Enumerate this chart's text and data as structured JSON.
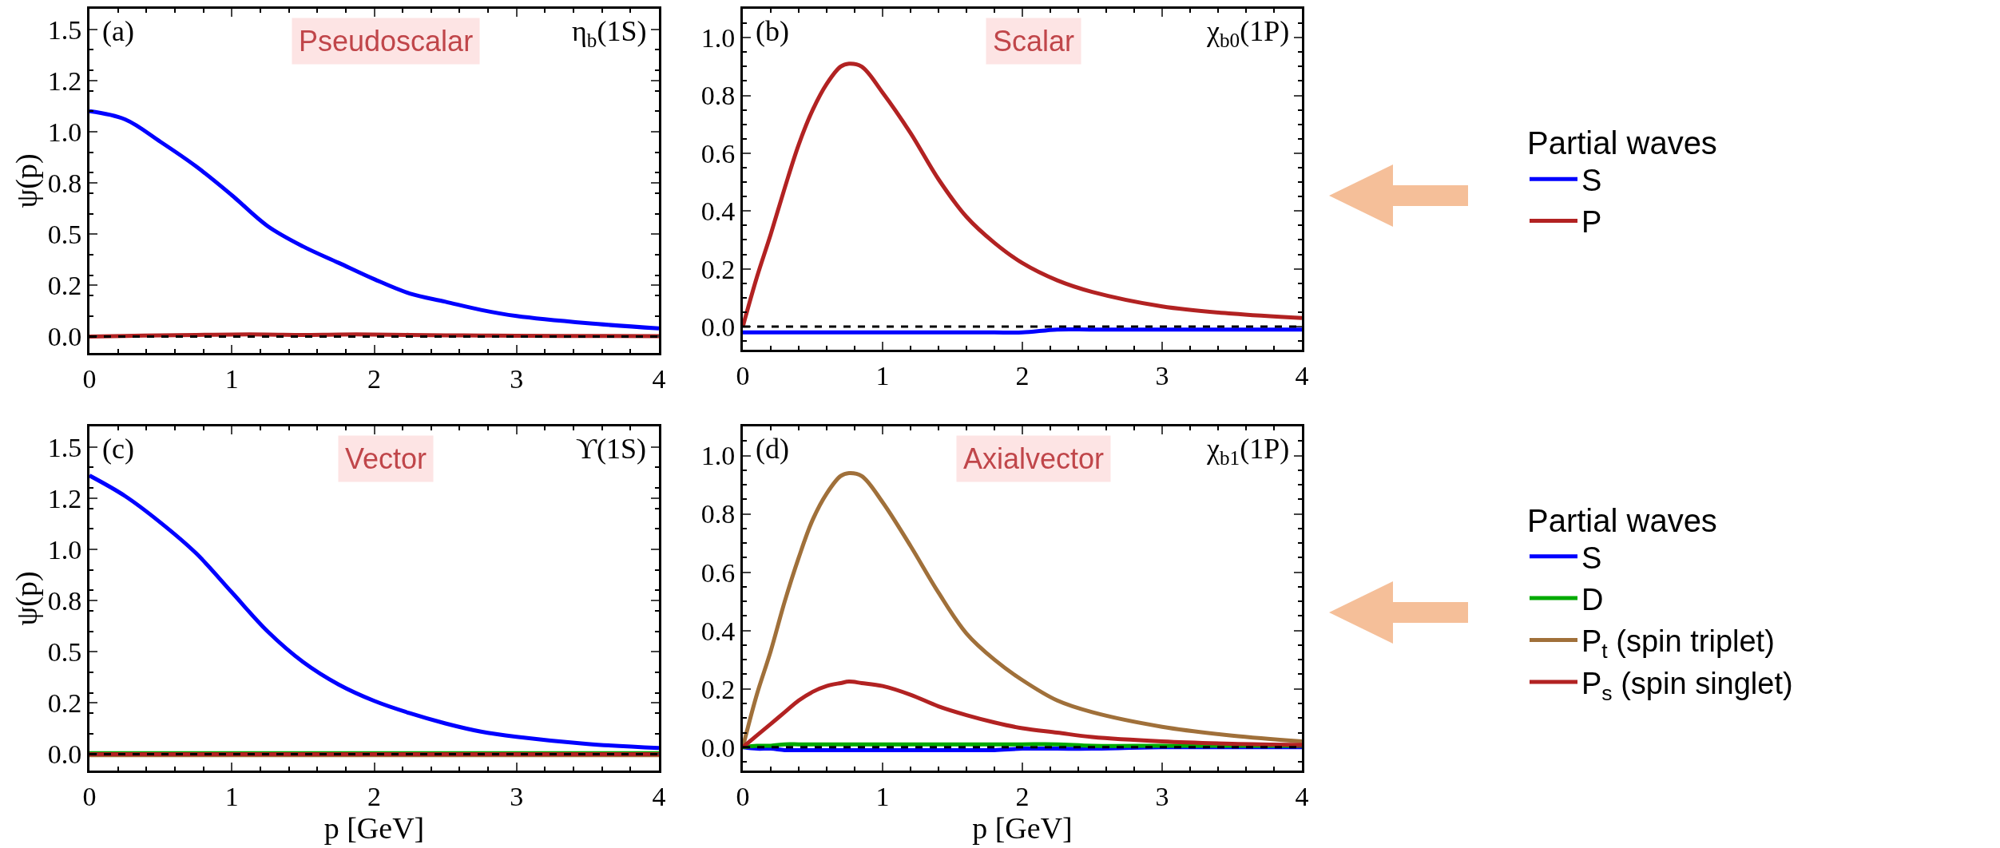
{
  "chart_data": [
    {
      "type": "line",
      "x": [
        0,
        0.25,
        0.5,
        0.75,
        1,
        1.25,
        1.5,
        1.75,
        2,
        2.25,
        2.5,
        2.75,
        3,
        3.5,
        4
      ],
      "ylabel": "ψ(p)",
      "xlim": [
        0,
        4
      ],
      "xticks": [
        0,
        1,
        2,
        3,
        4
      ],
      "ylim": [
        -0.08,
        1.6
      ],
      "yticks": [
        {
          "value": 0,
          "label": "0.0"
        },
        {
          "value": 0.25,
          "label": "0.2"
        },
        0.5,
        {
          "value": 0.75,
          "label": "0.8"
        },
        {
          "value": 1,
          "label": "1.0"
        },
        {
          "value": 1.25,
          "label": "1.2"
        },
        1.5
      ],
      "annotations": [
        "(a)",
        "Pseudoscalar",
        "η$_{b}$(1S)"
      ],
      "ref_lines": [
        {
          "axis": "y",
          "value": 0,
          "color": "#000000",
          "line_style": "dashed"
        }
      ],
      "legend": false,
      "grid": false,
      "series": [
        {
          "color": "#0000ff",
          "values": [
            1.1,
            1.06,
            0.95,
            0.83,
            0.69,
            0.54,
            0.44,
            0.36,
            0.28,
            0.21,
            0.17,
            0.13,
            0.1,
            0.065,
            0.04
          ]
        },
        {
          "color": "#b22222",
          "values": [
            0,
            0.003,
            0.006,
            0.008,
            0.01,
            0.01,
            0.008,
            0.01,
            0.01,
            0.008,
            0.006,
            0.005,
            0.004,
            0.003,
            0.002
          ]
        }
      ]
    },
    {
      "type": "line",
      "x": [
        0,
        0.1,
        0.2,
        0.3,
        0.4,
        0.5,
        0.6,
        0.7,
        0.76,
        0.85,
        1,
        1.2,
        1.4,
        1.6,
        1.8,
        2,
        2.25,
        2.5,
        3,
        3.5,
        4
      ],
      "xlim": [
        0,
        4
      ],
      "xticks": [
        0,
        1,
        2,
        3,
        4
      ],
      "ylim": [
        -0.08,
        1.1
      ],
      "yticks": [
        {
          "value": 0,
          "label": "0.0"
        },
        0.2,
        0.4,
        0.6,
        0.8,
        {
          "value": 1,
          "label": "1.0"
        }
      ],
      "annotations": [
        "(b)",
        "Scalar",
        "χ$_{b0}$(1P)"
      ],
      "ref_lines": [
        {
          "axis": "y",
          "value": 0,
          "color": "#000000",
          "line_style": "dashed"
        }
      ],
      "legend": "right",
      "legend_title": "Partial waves",
      "grid": false,
      "series": [
        {
          "name": "S",
          "color": "#0000ff",
          "values": [
            -0.02,
            -0.02,
            -0.02,
            -0.02,
            -0.02,
            -0.02,
            -0.02,
            -0.02,
            -0.02,
            -0.02,
            -0.02,
            -0.02,
            -0.02,
            -0.02,
            -0.02,
            -0.02,
            -0.01,
            -0.01,
            -0.01,
            -0.01,
            -0.01
          ]
        },
        {
          "name": "P",
          "color": "#b22222",
          "values": [
            0,
            0.17,
            0.32,
            0.48,
            0.63,
            0.75,
            0.84,
            0.9,
            0.91,
            0.9,
            0.81,
            0.67,
            0.51,
            0.38,
            0.29,
            0.22,
            0.16,
            0.12,
            0.07,
            0.045,
            0.03
          ]
        }
      ]
    },
    {
      "type": "line",
      "x": [
        0,
        0.25,
        0.5,
        0.75,
        1,
        1.25,
        1.5,
        1.75,
        2,
        2.25,
        2.5,
        2.75,
        3,
        3.5,
        4
      ],
      "xlabel": "p [GeV]",
      "ylabel": "ψ(p)",
      "xlim": [
        0,
        4
      ],
      "xticks": [
        0,
        1,
        2,
        3,
        4
      ],
      "ylim": [
        -0.08,
        1.6
      ],
      "yticks": [
        {
          "value": 0,
          "label": "0.0"
        },
        {
          "value": 0.25,
          "label": "0.2"
        },
        0.5,
        {
          "value": 0.75,
          "label": "0.8"
        },
        {
          "value": 1,
          "label": "1.0"
        },
        {
          "value": 1.25,
          "label": "1.2"
        },
        1.5
      ],
      "annotations": [
        "(c)",
        "Vector",
        "ϒ(1S)"
      ],
      "ref_lines": [
        {
          "axis": "y",
          "value": 0,
          "color": "#000000",
          "line_style": "dashed"
        }
      ],
      "legend": false,
      "grid": false,
      "series": [
        {
          "color": "#0000ff",
          "values": [
            1.36,
            1.26,
            1.13,
            0.98,
            0.79,
            0.6,
            0.45,
            0.34,
            0.26,
            0.2,
            0.15,
            0.11,
            0.085,
            0.05,
            0.03
          ]
        },
        {
          "color": "#00aa00",
          "values": [
            0.005,
            0.005,
            0.005,
            0.005,
            0.005,
            0.005,
            0.005,
            0.005,
            0.005,
            0.005,
            0.005,
            0.005,
            0.005,
            0.005,
            0.005
          ]
        },
        {
          "color": "#a0703a",
          "values": [
            -0.005,
            -0.005,
            -0.005,
            -0.005,
            -0.005,
            -0.005,
            -0.005,
            -0.005,
            -0.005,
            -0.005,
            -0.005,
            -0.005,
            -0.005,
            -0.005,
            -0.005
          ]
        },
        {
          "color": "#b22222",
          "values": [
            0,
            0,
            0,
            0,
            0,
            0,
            0,
            0,
            0,
            0,
            0,
            0,
            0,
            0,
            0
          ]
        }
      ]
    },
    {
      "type": "line",
      "x": [
        0,
        0.1,
        0.2,
        0.3,
        0.4,
        0.5,
        0.6,
        0.7,
        0.76,
        0.85,
        1,
        1.2,
        1.4,
        1.6,
        1.8,
        2,
        2.25,
        2.5,
        3,
        3.5,
        4
      ],
      "xlabel": "p [GeV]",
      "xlim": [
        0,
        4
      ],
      "xticks": [
        0,
        1,
        2,
        3,
        4
      ],
      "ylim": [
        -0.08,
        1.1
      ],
      "yticks": [
        {
          "value": 0,
          "label": "0.0"
        },
        0.2,
        0.4,
        0.6,
        0.8,
        {
          "value": 1,
          "label": "1.0"
        }
      ],
      "annotations": [
        "(d)",
        "Axialvector",
        "χ$_{b1}$(1P)"
      ],
      "ref_lines": [
        {
          "axis": "y",
          "value": 0,
          "color": "#000000",
          "line_style": "dashed"
        }
      ],
      "legend": "right",
      "legend_title": "Partial waves",
      "grid": false,
      "series": [
        {
          "name": "S",
          "color": "#0000ff",
          "values": [
            0,
            -0.005,
            -0.005,
            -0.01,
            -0.01,
            -0.01,
            -0.01,
            -0.01,
            -0.01,
            -0.01,
            -0.01,
            -0.01,
            -0.01,
            -0.01,
            -0.01,
            -0.005,
            -0.005,
            -0.005,
            0,
            0,
            0
          ]
        },
        {
          "name": "D",
          "color": "#00aa00",
          "values": [
            0,
            0.005,
            0.005,
            0.01,
            0.01,
            0.01,
            0.01,
            0.01,
            0.01,
            0.01,
            0.01,
            0.01,
            0.01,
            0.01,
            0.01,
            0.01,
            0.01,
            0.005,
            0.005,
            0.005,
            0.005
          ]
        },
        {
          "name": "P$_{t}$ (spin triplet)",
          "color": "#a0703a",
          "values": [
            0,
            0.18,
            0.33,
            0.5,
            0.65,
            0.78,
            0.87,
            0.93,
            0.94,
            0.93,
            0.84,
            0.69,
            0.53,
            0.39,
            0.3,
            0.23,
            0.16,
            0.12,
            0.07,
            0.04,
            0.02
          ]
        },
        {
          "name": "P$_{s}$ (spin singlet)",
          "color": "#b22222",
          "values": [
            0,
            0.04,
            0.08,
            0.12,
            0.16,
            0.19,
            0.21,
            0.22,
            0.225,
            0.22,
            0.21,
            0.18,
            0.14,
            0.11,
            0.085,
            0.065,
            0.05,
            0.035,
            0.02,
            0.012,
            0.008
          ]
        }
      ]
    }
  ]
}
